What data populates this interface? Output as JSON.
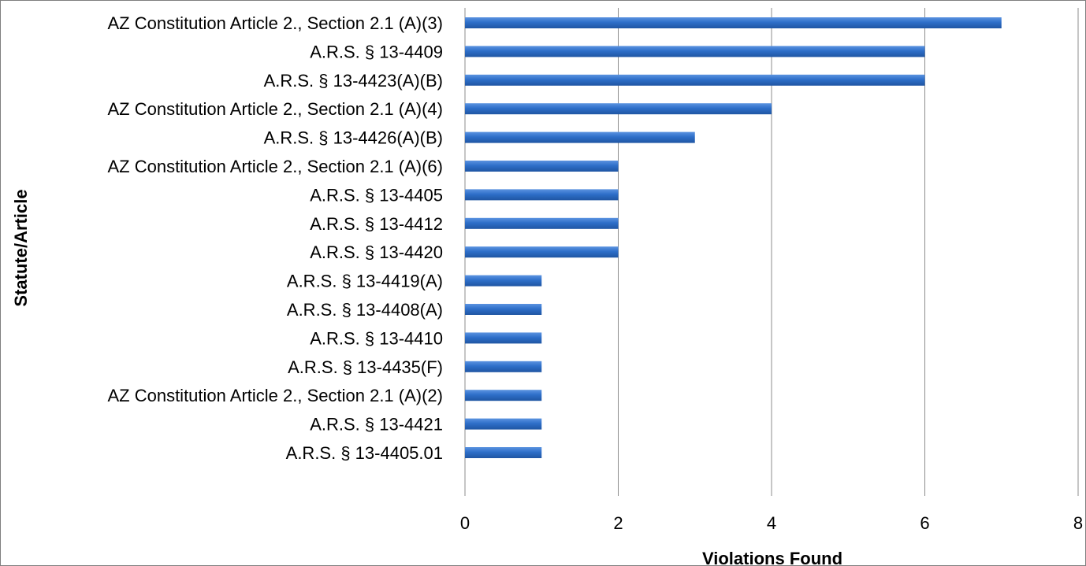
{
  "chart_data": {
    "type": "bar",
    "orientation": "horizontal",
    "categories": [
      "AZ Constitution Article 2., Section 2.1 (A)(3)",
      "A.R.S. § 13-4409",
      "A.R.S. § 13-4423(A)(B)",
      "AZ Constitution Article 2., Section 2.1 (A)(4)",
      "A.R.S. § 13-4426(A)(B)",
      "AZ Constitution Article 2., Section 2.1 (A)(6)",
      "A.R.S. § 13-4405",
      "A.R.S. § 13-4412",
      "A.R.S. § 13-4420",
      "A.R.S. § 13-4419(A)",
      "A.R.S. § 13-4408(A)",
      "A.R.S. § 13-4410",
      "A.R.S. § 13-4435(F)",
      "AZ Constitution Article 2., Section 2.1 (A)(2)",
      "A.R.S. § 13-4421",
      "A.R.S. § 13-4405.01"
    ],
    "values": [
      7,
      6,
      6,
      4,
      3,
      2,
      2,
      2,
      2,
      1,
      1,
      1,
      1,
      1,
      1,
      1
    ],
    "xlabel": "Violations Found",
    "ylabel": "Statute/Article",
    "xlim": [
      0,
      8
    ],
    "xticks": [
      "0",
      "2",
      "4",
      "6",
      "8"
    ],
    "grid": true,
    "legend": "none",
    "colors": {
      "bar": "#2e6fc9",
      "bar_dark": "#1f55a3",
      "grid": "#8c8c8c",
      "border": "#7f7f7f"
    }
  }
}
